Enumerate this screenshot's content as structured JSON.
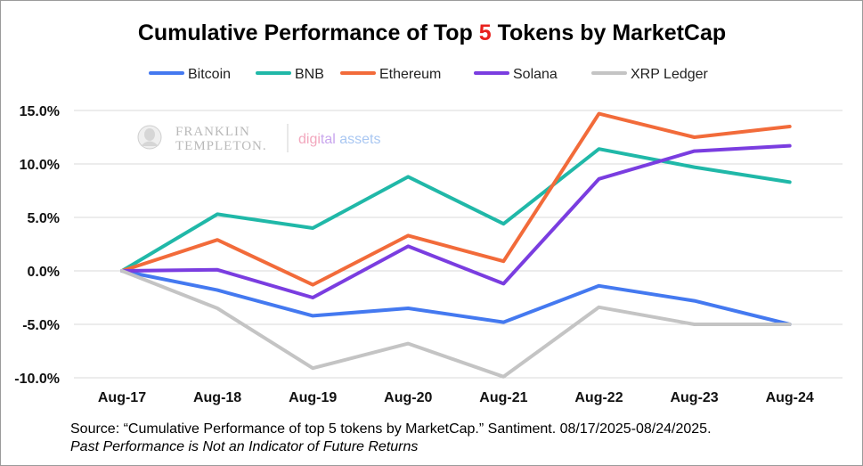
{
  "chart_data": {
    "type": "line",
    "title_parts": [
      "Cumulative Performance of Top ",
      "5",
      " Tokens by MarketCap"
    ],
    "title_highlight_color": "#e8211d",
    "categories": [
      "Aug-17",
      "Aug-18",
      "Aug-19",
      "Aug-20",
      "Aug-21",
      "Aug-22",
      "Aug-23",
      "Aug-24"
    ],
    "ylim": [
      -10,
      15
    ],
    "yticks": [
      15,
      10,
      5,
      0,
      -5,
      -10
    ],
    "ytick_labels": [
      "15.0%",
      "10.0%",
      "5.0%",
      "0.0%",
      "-5.0%",
      "-10.0%"
    ],
    "grid": true,
    "legend_position": "top",
    "series": [
      {
        "name": "Bitcoin",
        "color": "#4479f0",
        "values": [
          0,
          -1.8,
          -4.2,
          -3.5,
          -4.8,
          -1.4,
          -2.8,
          -5.0
        ]
      },
      {
        "name": "BNB",
        "color": "#20b8a8",
        "values": [
          0,
          5.3,
          4.0,
          8.8,
          4.4,
          11.4,
          9.7,
          8.3
        ]
      },
      {
        "name": "Ethereum",
        "color": "#f26b3a",
        "values": [
          0,
          2.9,
          -1.3,
          3.3,
          0.9,
          14.7,
          12.5,
          13.5
        ]
      },
      {
        "name": "Solana",
        "color": "#7a3de0",
        "values": [
          0,
          0.1,
          -2.5,
          2.3,
          -1.2,
          8.6,
          11.2,
          11.7
        ]
      },
      {
        "name": "XRP Ledger",
        "color": "#c4c4c4",
        "values": [
          0,
          -3.5,
          -9.1,
          -6.8,
          -9.9,
          -3.4,
          -5.0,
          -5.0
        ]
      }
    ]
  },
  "watermark": {
    "line1": "FRANKLIN",
    "line2": "TEMPLETON.",
    "digital_a": "digi",
    "digital_b": "tal ",
    "digital_c": "assets"
  },
  "footer": {
    "source": "Source: “Cumulative Performance of top 5 tokens by MarketCap.” Santiment. 08/17/2025-08/24/2025.",
    "disclaimer": "Past Performance is Not an Indicator of Future Returns"
  }
}
